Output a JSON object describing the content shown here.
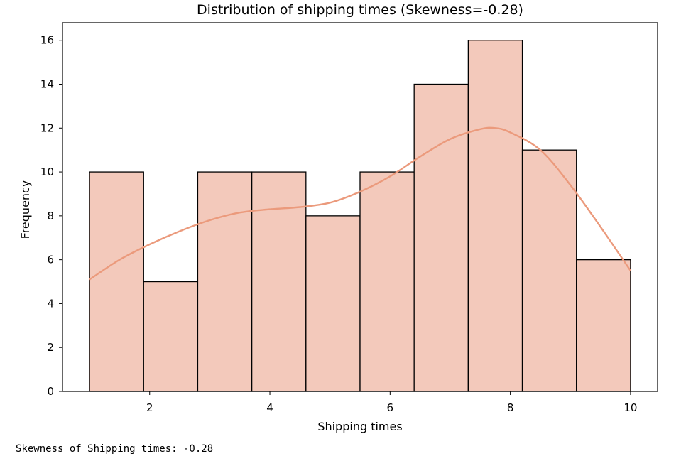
{
  "chart_data": {
    "type": "bar",
    "title": "Distribution of shipping times (Skewness=-0.28)",
    "xlabel": "Shipping times",
    "ylabel": "Frequency",
    "bin_edges": [
      1.0,
      1.9,
      2.8,
      3.7,
      4.6,
      5.5,
      6.4,
      7.3,
      8.2,
      9.1,
      10.0
    ],
    "values": [
      10,
      5,
      10,
      10,
      8,
      10,
      14,
      16,
      11,
      6
    ],
    "xlim": [
      0.55,
      10.45
    ],
    "ylim": [
      0,
      16.8
    ],
    "xticks": [
      2,
      4,
      6,
      8,
      10
    ],
    "yticks": [
      0,
      2,
      4,
      6,
      8,
      10,
      12,
      14,
      16
    ],
    "kde": {
      "x": [
        1.0,
        1.5,
        2.0,
        2.5,
        3.0,
        3.5,
        4.0,
        4.5,
        5.0,
        5.5,
        6.0,
        6.5,
        7.0,
        7.5,
        7.75,
        8.0,
        8.5,
        9.0,
        9.5,
        10.0
      ],
      "y": [
        5.1,
        6.0,
        6.7,
        7.3,
        7.8,
        8.15,
        8.3,
        8.4,
        8.6,
        9.1,
        9.8,
        10.7,
        11.5,
        11.95,
        12.0,
        11.8,
        11.0,
        9.4,
        7.5,
        5.5
      ]
    },
    "colors": {
      "bar_fill": "#f3c9bb",
      "bar_edge": "#000000",
      "kde_line": "#eb9a7c"
    },
    "grid": false
  },
  "output": {
    "text": "Skewness of Shipping times: -0.28"
  }
}
